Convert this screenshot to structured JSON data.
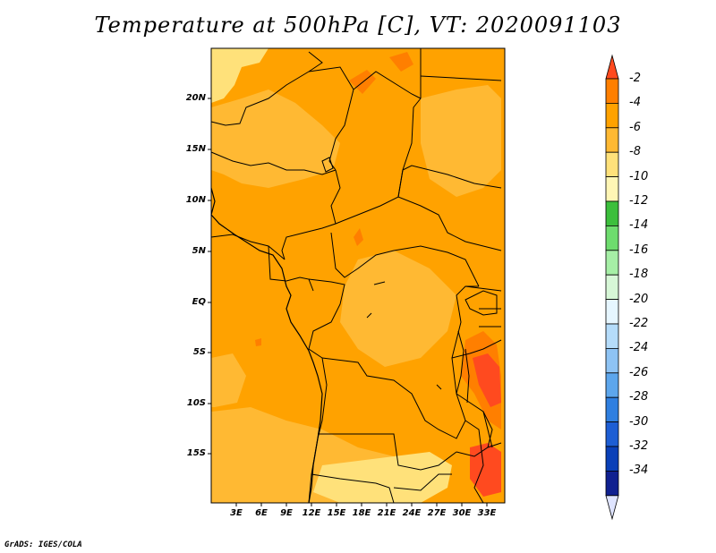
{
  "title": "Temperature at 500hPa [C], VT: 2020091103",
  "footer": "GrADS: IGES/COLA",
  "lat_labels": [
    "20N",
    "15N",
    "10N",
    "5N",
    "EQ",
    "5S",
    "10S",
    "15S"
  ],
  "lon_labels": [
    "3E",
    "6E",
    "9E",
    "12E",
    "15E",
    "18E",
    "21E",
    "24E",
    "27E",
    "30E",
    "33E"
  ],
  "colorbar": {
    "labels": [
      "-2",
      "-4",
      "-6",
      "-8",
      "-10",
      "-12",
      "-14",
      "-16",
      "-18",
      "-20",
      "-22",
      "-24",
      "-26",
      "-28",
      "-30",
      "-32",
      "-34"
    ],
    "colors": [
      "#ff4a1f",
      "#ff7f00",
      "#ffa200",
      "#ffb933",
      "#ffe17a",
      "#fff6b5",
      "#3cbf3c",
      "#6edc6e",
      "#a6efa6",
      "#d7f7d7",
      "#e6f6ff",
      "#b5dcfa",
      "#8ec3f4",
      "#5da6ec",
      "#2f7fe0",
      "#1d5ed4",
      "#0a40b8",
      "#102090"
    ],
    "top_arrow_color": "#ff4a1f",
    "bottom_arrow_color": "#dfe4ff"
  },
  "map": {
    "base_color": "#ffa200",
    "warm_color": "#ff7f00",
    "hot_color": "#ff4a1f",
    "cool_color": "#ffb933",
    "cooler_color": "#ffe17a"
  }
}
